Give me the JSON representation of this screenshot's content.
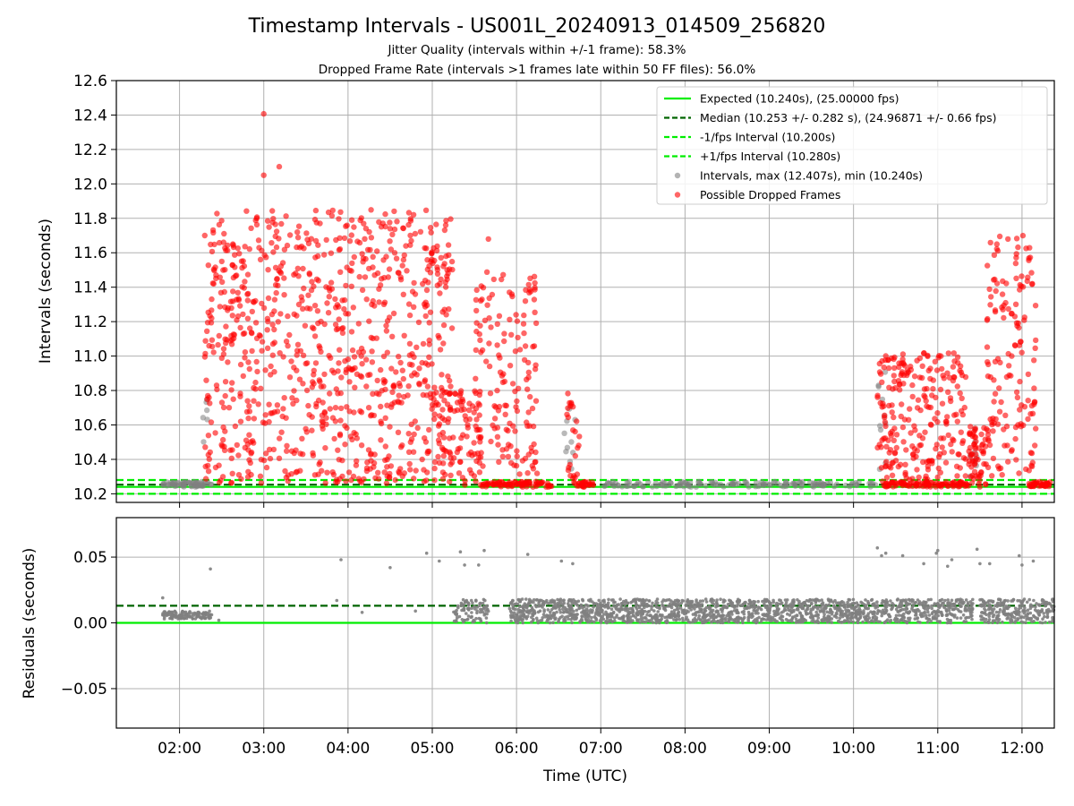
{
  "chart_data": [
    {
      "type": "scatter",
      "title": "Timestamp Intervals - US001L_20240913_014509_256820",
      "subtitle": [
        "Jitter Quality (intervals within +/-1 frame): 58.3%",
        "Dropped Frame Rate (intervals >1 frames late within 50 FF files): 56.0%"
      ],
      "ylabel": "Intervals (seconds)",
      "xlim": [
        "01:15",
        "12:23"
      ],
      "ylim": [
        10.15,
        12.6
      ],
      "yticks": [
        "10.2",
        "10.4",
        "10.6",
        "10.8",
        "11.0",
        "11.2",
        "11.4",
        "11.6",
        "11.8",
        "12.0",
        "12.2",
        "12.4",
        "12.6"
      ],
      "grid": true,
      "legend_position": "top-right",
      "hlines": [
        {
          "name": "Expected (10.240s), (25.00000 fps)",
          "y": 10.24,
          "style": "solid",
          "color": "#00ee00"
        },
        {
          "name": "Median (10.253 +/- 0.282 s), (24.96871 +/- 0.66 fps)",
          "y": 10.253,
          "style": "dashed",
          "color": "#006400"
        },
        {
          "name": "-1/fps Interval (10.200s)",
          "y": 10.2,
          "style": "dashed",
          "color": "#00ee00"
        },
        {
          "name": "+1/fps Interval (10.280s)",
          "y": 10.28,
          "style": "dashed",
          "color": "#00ee00"
        }
      ],
      "series": [
        {
          "name": "Intervals, max (12.407s), min (10.240s)",
          "color": "#808080",
          "clusters": [
            {
              "x0": "01:48",
              "x1": "02:23",
              "ymin": 10.24,
              "ymax": 10.27,
              "count": 60
            },
            {
              "x0": "02:15",
              "x1": "02:22",
              "ymin": 10.5,
              "ymax": 10.77,
              "count": 6
            },
            {
              "x0": "06:33",
              "x1": "06:42",
              "ymin": 10.28,
              "ymax": 10.78,
              "count": 10
            },
            {
              "x0": "07:00",
              "x1": "10:17",
              "ymin": 10.24,
              "ymax": 10.27,
              "count": 140
            },
            {
              "x0": "10:17",
              "x1": "10:23",
              "ymin": 10.3,
              "ymax": 10.93,
              "count": 10
            },
            {
              "x0": "11:22",
              "x1": "11:28",
              "ymin": 10.3,
              "ymax": 10.6,
              "count": 10
            }
          ]
        },
        {
          "name": "Possible Dropped Frames",
          "color": "#ff0000",
          "clusters": [
            {
              "x0": "02:18",
              "x1": "05:15",
              "ymin": 10.26,
              "ymax": 11.85,
              "count": 900
            },
            {
              "x0": "05:05",
              "x1": "05:35",
              "ymin": 10.25,
              "ymax": 10.8,
              "count": 90
            },
            {
              "x0": "05:30",
              "x1": "06:15",
              "ymin": 10.25,
              "ymax": 11.5,
              "count": 150
            },
            {
              "x0": "05:35",
              "x1": "06:25",
              "ymin": 10.24,
              "ymax": 10.27,
              "count": 80
            },
            {
              "x0": "06:35",
              "x1": "06:45",
              "ymin": 10.26,
              "ymax": 10.85,
              "count": 25
            },
            {
              "x0": "06:40",
              "x1": "06:55",
              "ymin": 10.24,
              "ymax": 10.27,
              "count": 25
            },
            {
              "x0": "10:17",
              "x1": "11:20",
              "ymin": 10.26,
              "ymax": 11.02,
              "count": 240
            },
            {
              "x0": "10:20",
              "x1": "11:22",
              "ymin": 10.24,
              "ymax": 10.27,
              "count": 100
            },
            {
              "x0": "11:22",
              "x1": "11:35",
              "ymin": 10.24,
              "ymax": 10.6,
              "count": 60
            },
            {
              "x0": "11:35",
              "x1": "12:10",
              "ymin": 10.3,
              "ymax": 11.7,
              "count": 150
            },
            {
              "x0": "12:05",
              "x1": "12:20",
              "ymin": 10.24,
              "ymax": 10.27,
              "count": 40
            }
          ],
          "points": [
            {
              "x": "03:00",
              "y": 12.407
            },
            {
              "x": "03:00",
              "y": 12.05
            },
            {
              "x": "03:11",
              "y": 12.1
            },
            {
              "x": "02:18",
              "y": 11.7
            },
            {
              "x": "05:40",
              "y": 11.68
            },
            {
              "x": "11:50",
              "y": 11.68
            },
            {
              "x": "04:30",
              "y": 11.74
            }
          ]
        }
      ]
    },
    {
      "type": "scatter",
      "xlabel": "Time (UTC)",
      "ylabel": "Residuals (seconds)",
      "xlim": [
        "01:15",
        "12:23"
      ],
      "ylim": [
        -0.08,
        0.08
      ],
      "yticks": [
        "−0.05",
        "0.00",
        "0.05"
      ],
      "xticks": [
        "02:00",
        "03:00",
        "04:00",
        "05:00",
        "06:00",
        "07:00",
        "08:00",
        "09:00",
        "10:00",
        "11:00",
        "12:00"
      ],
      "grid": true,
      "hlines": [
        {
          "y": 0.0,
          "style": "solid",
          "color": "#00ee00"
        },
        {
          "y": 0.013,
          "style": "dashed",
          "color": "#006400"
        }
      ],
      "series": [
        {
          "color": "#808080",
          "clusters": [
            {
              "x0": "01:48",
              "x1": "02:23",
              "ymin": 0.003,
              "ymax": 0.009,
              "count": 120
            },
            {
              "x0": "05:15",
              "x1": "05:40",
              "ymin": 0.0,
              "ymax": 0.018,
              "count": 90
            },
            {
              "x0": "05:55",
              "x1": "10:20",
              "ymin": 0.0,
              "ymax": 0.018,
              "count": 1400
            },
            {
              "x0": "10:20",
              "x1": "11:25",
              "ymin": 0.0,
              "ymax": 0.018,
              "count": 300
            },
            {
              "x0": "11:30",
              "x1": "12:23",
              "ymin": 0.0,
              "ymax": 0.018,
              "count": 250
            }
          ],
          "points": [
            {
              "x": "01:48",
              "y": 0.019
            },
            {
              "x": "02:22",
              "y": 0.041
            },
            {
              "x": "02:28",
              "y": 0.002
            },
            {
              "x": "03:52",
              "y": 0.017
            },
            {
              "x": "03:55",
              "y": 0.048
            },
            {
              "x": "04:10",
              "y": 0.008
            },
            {
              "x": "04:30",
              "y": 0.042
            },
            {
              "x": "04:48",
              "y": 0.009
            },
            {
              "x": "04:56",
              "y": 0.053
            },
            {
              "x": "05:05",
              "y": 0.047
            },
            {
              "x": "05:20",
              "y": 0.054
            },
            {
              "x": "05:23",
              "y": 0.044
            },
            {
              "x": "05:33",
              "y": 0.044
            },
            {
              "x": "05:37",
              "y": 0.055
            },
            {
              "x": "06:08",
              "y": 0.052
            },
            {
              "x": "06:32",
              "y": 0.047
            },
            {
              "x": "06:40",
              "y": 0.045
            },
            {
              "x": "10:17",
              "y": 0.057
            },
            {
              "x": "10:20",
              "y": 0.051
            },
            {
              "x": "10:23",
              "y": 0.053
            },
            {
              "x": "10:35",
              "y": 0.051
            },
            {
              "x": "10:50",
              "y": 0.045
            },
            {
              "x": "10:59",
              "y": 0.053
            },
            {
              "x": "11:00",
              "y": 0.055
            },
            {
              "x": "11:07",
              "y": 0.043
            },
            {
              "x": "11:10",
              "y": 0.048
            },
            {
              "x": "11:28",
              "y": 0.056
            },
            {
              "x": "11:30",
              "y": 0.045
            },
            {
              "x": "11:37",
              "y": 0.045
            },
            {
              "x": "11:58",
              "y": 0.051
            },
            {
              "x": "12:00",
              "y": 0.044
            },
            {
              "x": "12:08",
              "y": 0.047
            }
          ]
        }
      ]
    }
  ]
}
